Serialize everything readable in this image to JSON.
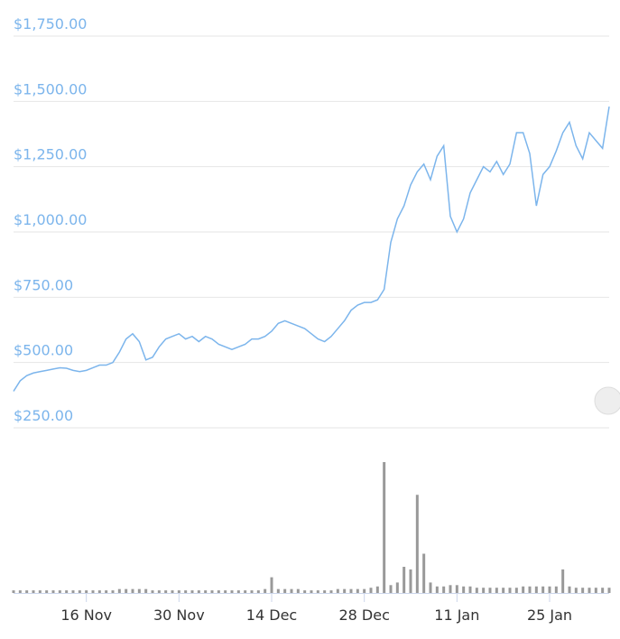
{
  "chart_data": {
    "type": "line",
    "categories": [
      null,
      null,
      null,
      null,
      null,
      null,
      null,
      null,
      null,
      null,
      null,
      "16 Nov",
      null,
      null,
      null,
      null,
      null,
      null,
      null,
      null,
      null,
      null,
      null,
      null,
      null,
      "30 Nov",
      null,
      null,
      null,
      null,
      null,
      null,
      null,
      null,
      null,
      null,
      null,
      null,
      null,
      "14 Dec",
      null,
      null,
      null,
      null,
      null,
      null,
      null,
      null,
      null,
      null,
      null,
      null,
      null,
      "28 Dec",
      null,
      null,
      null,
      null,
      null,
      null,
      null,
      null,
      null,
      null,
      null,
      null,
      null,
      "11 Jan",
      null,
      null,
      null,
      null,
      null,
      null,
      null,
      null,
      null,
      null,
      null,
      null,
      null,
      "25 Jan",
      null,
      null,
      null,
      null,
      null,
      null,
      null,
      null,
      null
    ],
    "series": [
      {
        "color": "#7cb5ec",
        "values": [
          390,
          430,
          450,
          460,
          465,
          470,
          475,
          480,
          478,
          470,
          465,
          470,
          480,
          490,
          490,
          500,
          540,
          590,
          610,
          580,
          510,
          520,
          560,
          590,
          600,
          610,
          590,
          600,
          580,
          600,
          590,
          570,
          560,
          550,
          560,
          570,
          590,
          590,
          600,
          620,
          650,
          660,
          650,
          640,
          630,
          610,
          590,
          580,
          600,
          630,
          660,
          700,
          720,
          730,
          730,
          740,
          780,
          960,
          1050,
          1100,
          1180,
          1230,
          1260,
          1200,
          1290,
          1330,
          1060,
          1000,
          1050,
          1150,
          1200,
          1250,
          1230,
          1270,
          1220,
          1260,
          1380,
          1380,
          1300,
          1100,
          1220,
          1250,
          1310,
          1380,
          1420,
          1330,
          1280,
          1380,
          1350,
          1320,
          1480
        ]
      },
      {
        "type": "bar",
        "axis": "y2",
        "color": "#999999",
        "values": [
          2,
          2,
          2,
          2,
          2,
          2,
          2,
          2,
          2,
          2,
          2,
          2,
          2,
          2,
          2,
          2,
          3,
          3,
          3,
          3,
          3,
          2,
          2,
          2,
          2,
          2,
          2,
          2,
          2,
          2,
          2,
          2,
          2,
          2,
          2,
          2,
          2,
          2,
          3,
          12,
          3,
          3,
          3,
          3,
          2,
          2,
          2,
          2,
          2,
          3,
          3,
          3,
          3,
          3,
          4,
          5,
          100,
          6,
          8,
          20,
          18,
          75,
          30,
          8,
          5,
          5,
          6,
          6,
          5,
          5,
          4,
          4,
          4,
          4,
          4,
          4,
          4,
          5,
          5,
          5,
          5,
          5,
          5,
          18,
          5,
          4,
          4,
          4,
          4,
          4,
          4
        ]
      }
    ],
    "ylim": [
      250,
      1750
    ],
    "yticks": [
      {
        "value": 250,
        "label": "$250.00"
      },
      {
        "value": 500,
        "label": "$500.00"
      },
      {
        "value": 750,
        "label": "$750.00"
      },
      {
        "value": 1000,
        "label": "$1,000.00"
      },
      {
        "value": 1250,
        "label": "$1,250.00"
      },
      {
        "value": 1500,
        "label": "$1,500.00"
      },
      {
        "value": 1750,
        "label": "$1,750.00"
      }
    ],
    "y2lim": [
      0,
      100
    ],
    "grid": true
  }
}
